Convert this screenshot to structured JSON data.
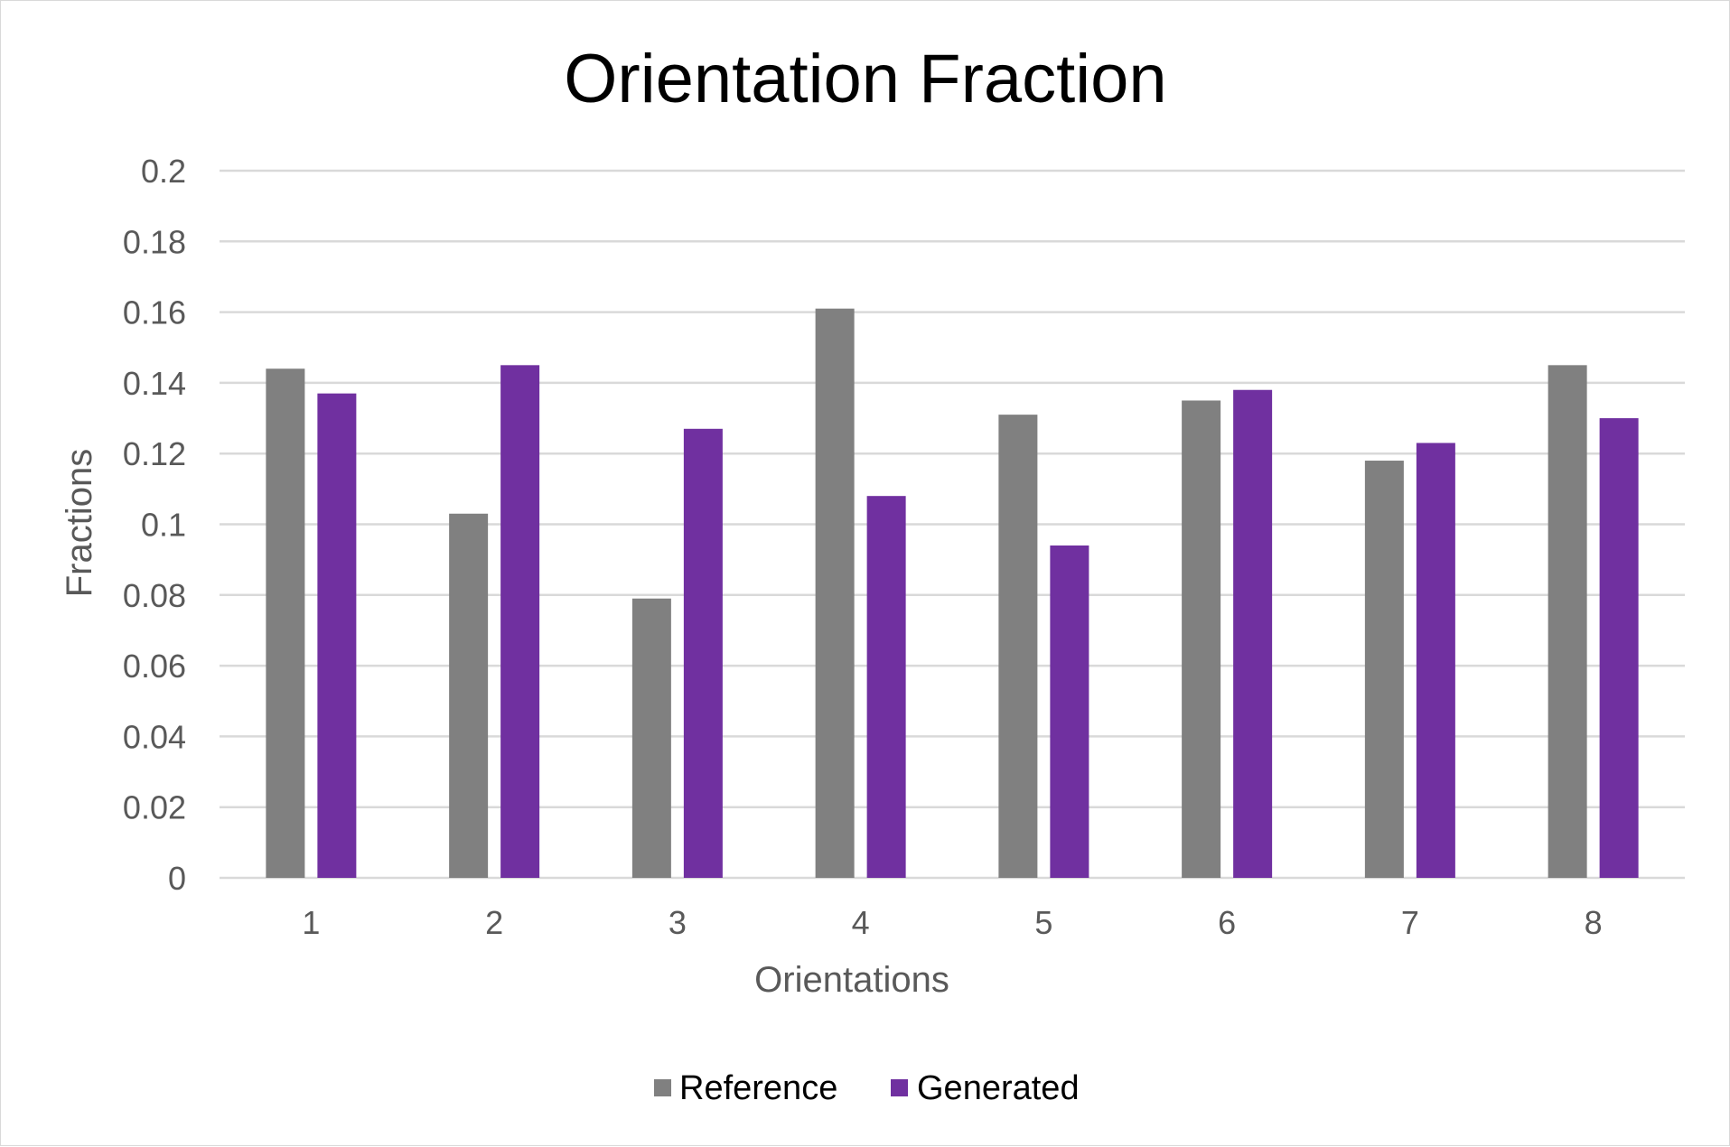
{
  "chart_data": {
    "type": "bar",
    "title": "Orientation Fraction",
    "xlabel": "Orientations",
    "ylabel": "Fractions",
    "categories": [
      "1",
      "2",
      "3",
      "4",
      "5",
      "6",
      "7",
      "8"
    ],
    "series": [
      {
        "name": "Reference",
        "color": "#808080",
        "values": [
          0.144,
          0.103,
          0.079,
          0.161,
          0.131,
          0.135,
          0.118,
          0.145
        ]
      },
      {
        "name": "Generated",
        "color": "#7030A0",
        "values": [
          0.137,
          0.145,
          0.127,
          0.108,
          0.094,
          0.138,
          0.123,
          0.13
        ]
      }
    ],
    "ylim": [
      0,
      0.2
    ],
    "yticks": [
      "0",
      "0.02",
      "0.04",
      "0.06",
      "0.08",
      "0.1",
      "0.12",
      "0.14",
      "0.16",
      "0.18",
      "0.2"
    ],
    "grid": true,
    "legend_position": "bottom"
  }
}
